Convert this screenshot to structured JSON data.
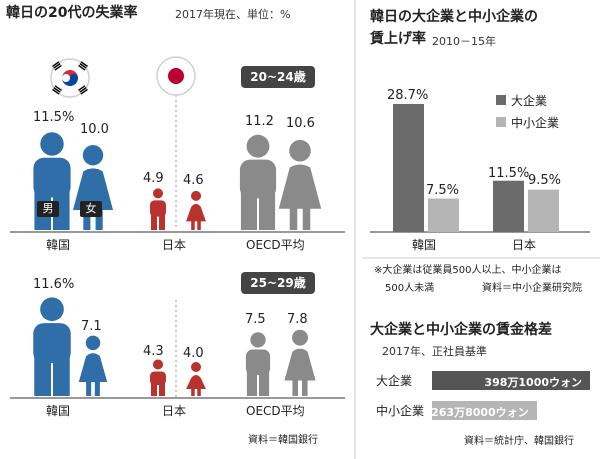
{
  "left": {
    "title": "韓日の20代の失業率",
    "subtitle": "2017年現在、単位：%",
    "source": "資料＝韓国銀行",
    "age_groups": [
      "20~24歳",
      "25~29歳"
    ],
    "gender_labels": [
      "男",
      "女"
    ],
    "countries": [
      "韓国",
      "日本",
      "OECD平均"
    ],
    "colors": {
      "韓国": "#2f6ea8",
      "日本": "#b8322e",
      "OECD平均": "#8a8a8a"
    }
  },
  "chart_data": [
    {
      "type": "bar",
      "title": "韓日の20代の失業率",
      "subtitle": "2017年現在、単位：%",
      "categories": [
        "韓国",
        "日本",
        "OECD平均"
      ],
      "series": [
        {
          "name": "20~24歳 男",
          "values": [
            11.5,
            4.9,
            11.2
          ]
        },
        {
          "name": "20~24歳 女",
          "values": [
            10.0,
            4.6,
            10.6
          ]
        },
        {
          "name": "25~29歳 男",
          "values": [
            11.6,
            4.3,
            7.5
          ]
        },
        {
          "name": "25~29歳 女",
          "values": [
            7.1,
            4.0,
            7.8
          ]
        }
      ],
      "labels": {
        "20~24歳": [
          [
            "11.5%",
            "10.0"
          ],
          [
            "4.9",
            "4.6"
          ],
          [
            "11.2",
            "10.6"
          ]
        ],
        "25~29歳": [
          [
            "11.6%",
            "7.1"
          ],
          [
            "4.3",
            "4.0"
          ],
          [
            "7.5",
            "7.8"
          ]
        ]
      }
    },
    {
      "type": "bar",
      "title": "韓日の大企業と中小企業の",
      "title2": "賃上げ率",
      "subtitle": "2010－15年",
      "categories": [
        "韓国",
        "日本"
      ],
      "series": [
        {
          "name": "大企業",
          "values": [
            28.7,
            11.5
          ],
          "color": "#6b6b6b"
        },
        {
          "name": "中小企業",
          "values": [
            7.5,
            9.5
          ],
          "color": "#b5b5b5"
        }
      ],
      "value_labels": [
        [
          "28.7%",
          "7.5%"
        ],
        [
          "11.5%",
          "9.5%"
        ]
      ],
      "ylim": [
        0,
        30
      ],
      "note": "※大企業は従業員500人以上、中小企業は",
      "note2": "500人未満",
      "source": "資料＝中小企業研究院"
    },
    {
      "type": "bar",
      "title": "大企業と中小企業の賃金格差",
      "subtitle": "2017年、正社員基準",
      "categories": [
        "大企業",
        "中小企業"
      ],
      "values": [
        3981000,
        2638000
      ],
      "value_labels": [
        "398万1000ウォン",
        "263万8000ウォン"
      ],
      "colors": [
        "#555555",
        "#b5b5b5"
      ],
      "source": "資料＝統計庁、韓国銀行"
    }
  ]
}
